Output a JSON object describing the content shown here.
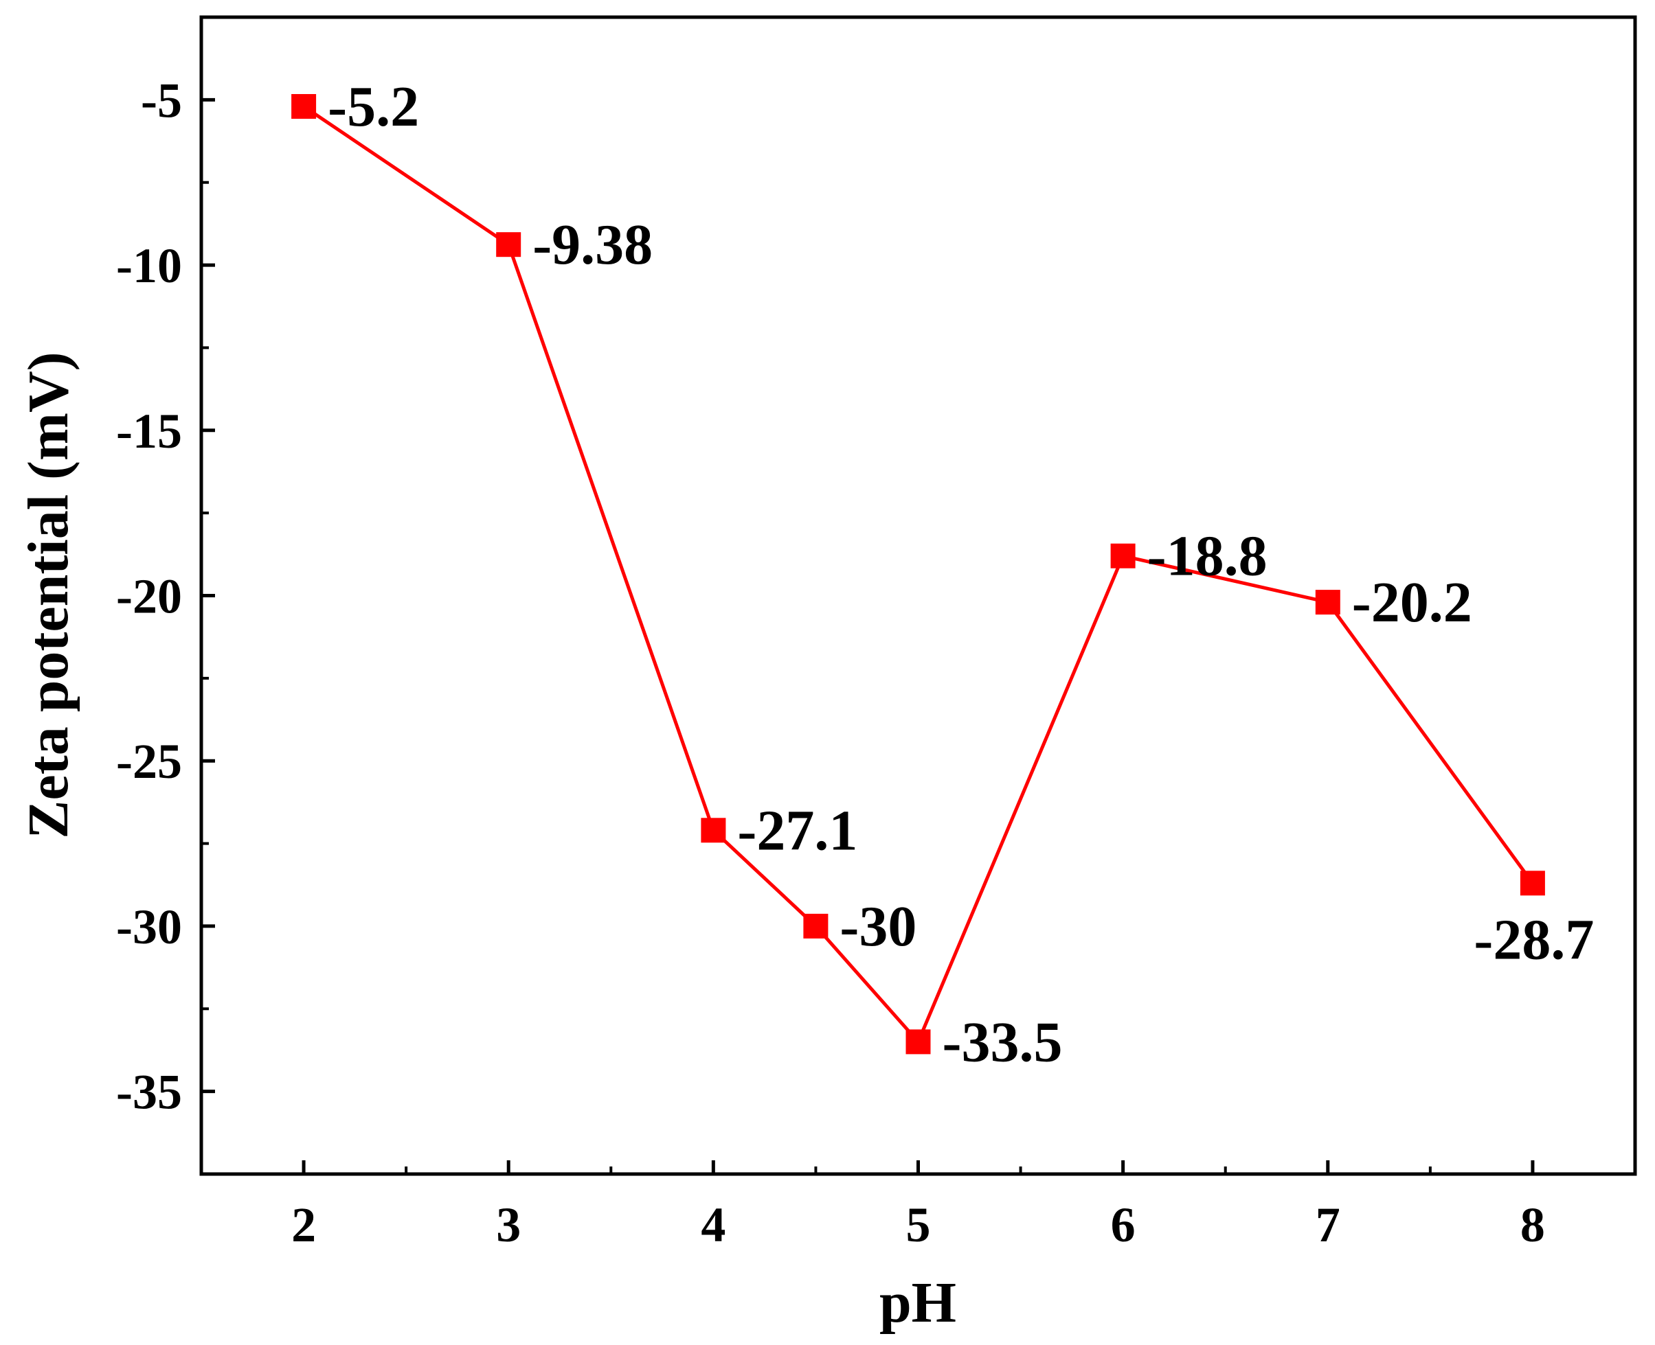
{
  "chart_data": {
    "type": "line",
    "title": "",
    "xlabel": "pH",
    "ylabel": "Zeta potential (mV)",
    "xlim": [
      1.5,
      8.5
    ],
    "ylim": [
      -37.5,
      -2.5
    ],
    "x_ticks": [
      2,
      3,
      4,
      5,
      6,
      7,
      8
    ],
    "x_tick_labels": [
      "2",
      "3",
      "4",
      "5",
      "6",
      "7",
      "8"
    ],
    "y_ticks": [
      -5,
      -10,
      -15,
      -20,
      -25,
      -30,
      -35
    ],
    "y_tick_labels": [
      "-5",
      "-10",
      "-15",
      "-20",
      "-25",
      "-30",
      "-35"
    ],
    "grid": false,
    "legend": "none",
    "series": [
      {
        "color": "#ff0000",
        "marker": "square",
        "x": [
          2,
          3,
          4,
          4.5,
          5,
          6,
          7,
          8
        ],
        "y": [
          -5.2,
          -9.38,
          -27.1,
          -30,
          -33.5,
          -18.8,
          -20.2,
          -28.7
        ],
        "labels": [
          "-5.2",
          "-9.38",
          "-27.1",
          "-30",
          "-33.5",
          "-18.8",
          "-20.2",
          "-28.7"
        ]
      }
    ]
  }
}
